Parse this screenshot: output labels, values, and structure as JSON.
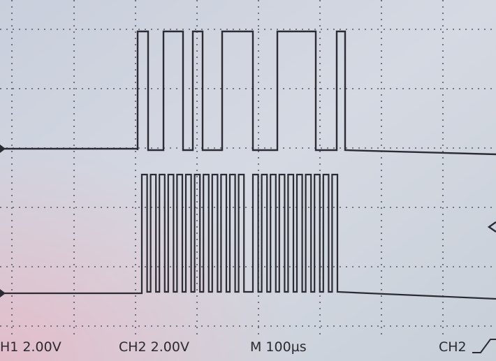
{
  "readout": {
    "ch1": "H1  2.00V",
    "ch2": "CH2  2.00V",
    "timebase": "M 100µs",
    "trigger": "CH2"
  }
}
